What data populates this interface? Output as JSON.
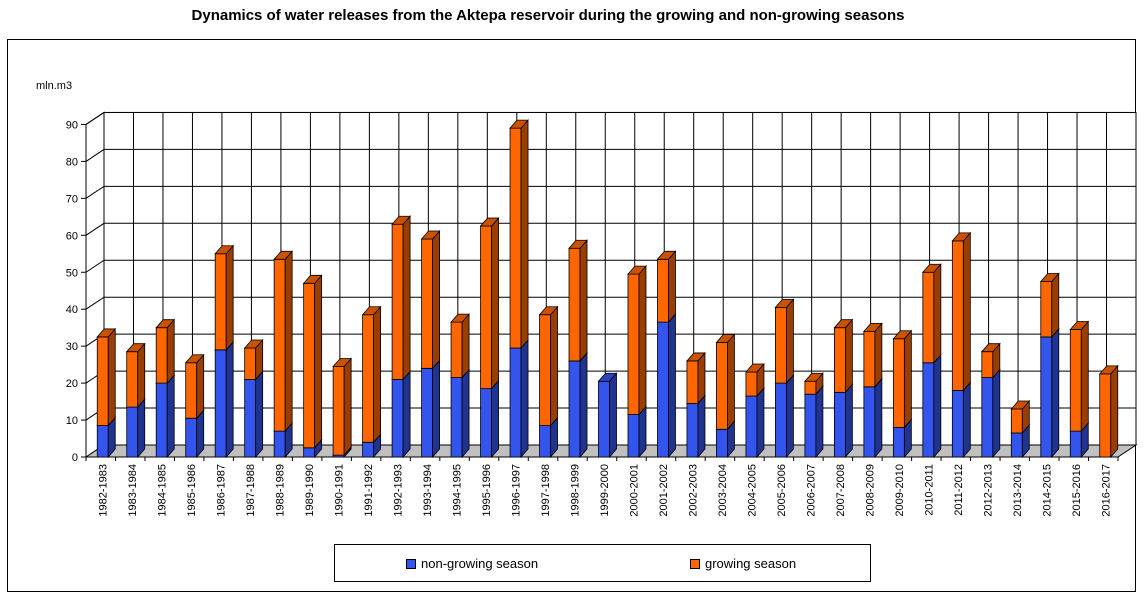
{
  "chart_data": {
    "type": "bar",
    "stacked": true,
    "three_d": true,
    "title": "Dynamics of water releases from the Aktepa reservoir during the growing and non-growing seasons",
    "ylabel": "mln.m3",
    "xlabel": "",
    "ylim": [
      0,
      90
    ],
    "yticks": [
      0,
      10,
      20,
      30,
      40,
      50,
      60,
      70,
      80,
      90
    ],
    "grid": true,
    "legend_position": "bottom",
    "categories": [
      "1982-1983",
      "1983-1984",
      "1984-1985",
      "1985-1986",
      "1986-1987",
      "1987-1988",
      "1988-1989",
      "1989-1990",
      "1990-1991",
      "1991-1992",
      "1992-1993",
      "1993-1994",
      "1994-1995",
      "1995-1996",
      "1996-1997",
      "1997-1998",
      "1998-1999",
      "1999-2000",
      "2000-2001",
      "2001-2002",
      "2002-2003",
      "2003-2004",
      "2004-2005",
      "2005-2006",
      "2006-2007",
      "2007-2008",
      "2008-2009",
      "2009-2010",
      "2010-2011",
      "2011-2012",
      "2012-2013",
      "2013-2014",
      "2014-2015",
      "2015-2016",
      "2016-2017"
    ],
    "series": [
      {
        "name": "non-growing season",
        "color": "#3355ee",
        "values": [
          8.5,
          13.5,
          20,
          10.5,
          29,
          21,
          7,
          2.5,
          0.5,
          4,
          21,
          24,
          21.5,
          18.5,
          29.5,
          8.5,
          26,
          20.5,
          11.5,
          36.5,
          14.5,
          7.5,
          16.5,
          20,
          17,
          17.5,
          19,
          8,
          25.5,
          18,
          21.5,
          6.5,
          32.5,
          7,
          0
        ]
      },
      {
        "name": "growing season",
        "color": "#ff6600",
        "values": [
          24,
          15,
          15,
          15,
          26,
          8.5,
          46.5,
          44.5,
          24,
          34.5,
          42,
          35,
          15,
          44,
          59.5,
          30,
          30.5,
          0,
          38,
          17,
          11.5,
          23.5,
          6.5,
          20.5,
          3.5,
          17.5,
          15,
          24,
          24.5,
          40.5,
          7,
          6.5,
          15,
          27.5,
          22.5
        ]
      }
    ]
  }
}
